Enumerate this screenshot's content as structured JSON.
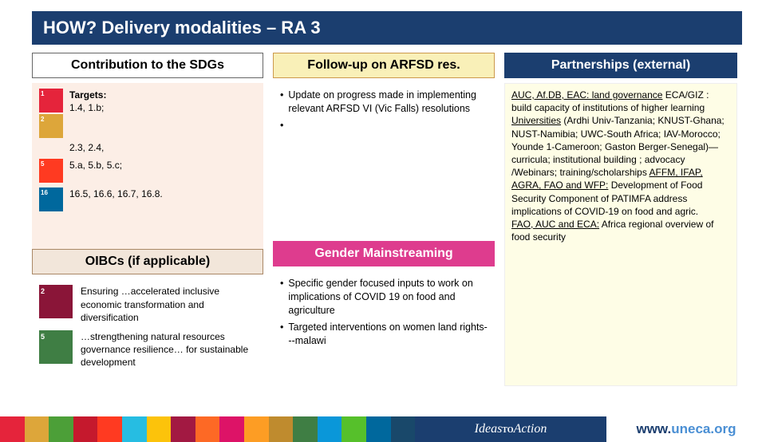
{
  "title": "HOW? Delivery modalities – RA 3",
  "left": {
    "contrib_hdr": "Contribution to the SDGs",
    "targets_label": "Targets:",
    "targets_1": "1.4, 1.b;",
    "targets_2": "2.3, 2.4,",
    "targets_5": "5.a, 5.b, 5.c;",
    "targets_16": "16.5, 16.6, 16.7, 16.8.",
    "oibc_hdr": "OIBCs (if applicable)",
    "oibc_2": "Ensuring …accelerated inclusive economic transformation and diversification",
    "oibc_5": "…strengthening natural resources governance resilience… for sustainable development"
  },
  "mid": {
    "follow_hdr": "Follow-up on ARFSD res.",
    "follow_b1": "Update on progress made in implementing relevant ARFSD VI (Vic Falls) resolutions",
    "gender_hdr": "Gender Mainstreaming",
    "gender_b1": "Specific gender focused inputs to work on implications of COVID 19 on food and agriculture",
    "gender_b2": "Targeted interventions on women land rights---malawi"
  },
  "right": {
    "hdr": "Partnerships (external)",
    "body_html": "<u>AUC, Af.DB, EAC: land governance</u> ECA/GIZ : build capacity of institutions of higher learning <u>Universities</u> (Ardhi Univ-Tanzania; KNUST-Ghana; NUST-Namibia; UWC-South Africa; IAV-Morocco; Younde 1-Cameroon; Gaston Berger-Senegal)—curricula; institutional building ; advocacy /Webinars; training/scholarships <u>AFFM, IFAP, AGRA, FAO and WFP:</u> Development of Food Security Component of PATIMFA address implications of COVID-19 on food and agric.<br><u>FAO, AUC and ECA:</u> Africa regional overview of food security"
  },
  "sdg_colors": {
    "1": "#e5243b",
    "2": "#dda63a",
    "5": "#ff3a21",
    "16": "#00689d"
  },
  "oibc_colors": {
    "2": "#8a1538",
    "5": "#3f7e44"
  },
  "footer": {
    "stripes": [
      "#e5243b",
      "#dda63a",
      "#4c9f38",
      "#c5192d",
      "#ff3a21",
      "#26bde2",
      "#fcc30b",
      "#a21942",
      "#fd6925",
      "#dd1367",
      "#fd9d24",
      "#bf8b2e",
      "#3f7e44",
      "#0a97d9",
      "#56c02b",
      "#00689d",
      "#19486a"
    ],
    "tagline_a": "Ideas",
    "tagline_b": "TO",
    "tagline_c": "Action",
    "url_a": "www.",
    "url_b": "uneca.org"
  }
}
